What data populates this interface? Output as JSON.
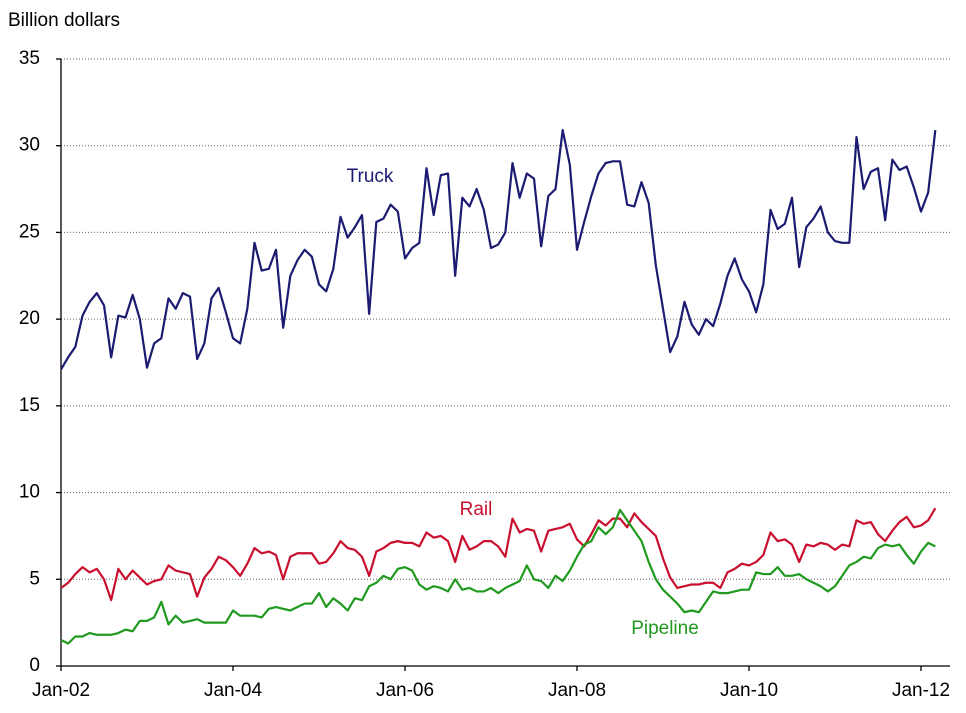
{
  "chart_data": {
    "type": "line",
    "y_label": "Billion dollars",
    "x": [
      "2002-01",
      "2002-02",
      "2002-03",
      "2002-04",
      "2002-05",
      "2002-06",
      "2002-07",
      "2002-08",
      "2002-09",
      "2002-10",
      "2002-11",
      "2002-12",
      "2003-01",
      "2003-02",
      "2003-03",
      "2003-04",
      "2003-05",
      "2003-06",
      "2003-07",
      "2003-08",
      "2003-09",
      "2003-10",
      "2003-11",
      "2003-12",
      "2004-01",
      "2004-02",
      "2004-03",
      "2004-04",
      "2004-05",
      "2004-06",
      "2004-07",
      "2004-08",
      "2004-09",
      "2004-10",
      "2004-11",
      "2004-12",
      "2005-01",
      "2005-02",
      "2005-03",
      "2005-04",
      "2005-05",
      "2005-06",
      "2005-07",
      "2005-08",
      "2005-09",
      "2005-10",
      "2005-11",
      "2005-12",
      "2006-01",
      "2006-02",
      "2006-03",
      "2006-04",
      "2006-05",
      "2006-06",
      "2006-07",
      "2006-08",
      "2006-09",
      "2006-10",
      "2006-11",
      "2006-12",
      "2007-01",
      "2007-02",
      "2007-03",
      "2007-04",
      "2007-05",
      "2007-06",
      "2007-07",
      "2007-08",
      "2007-09",
      "2007-10",
      "2007-11",
      "2007-12",
      "2008-01",
      "2008-02",
      "2008-03",
      "2008-04",
      "2008-05",
      "2008-06",
      "2008-07",
      "2008-08",
      "2008-09",
      "2008-10",
      "2008-11",
      "2008-12",
      "2009-01",
      "2009-02",
      "2009-03",
      "2009-04",
      "2009-05",
      "2009-06",
      "2009-07",
      "2009-08",
      "2009-09",
      "2009-10",
      "2009-11",
      "2009-12",
      "2010-01",
      "2010-02",
      "2010-03",
      "2010-04",
      "2010-05",
      "2010-06",
      "2010-07",
      "2010-08",
      "2010-09",
      "2010-10",
      "2010-11",
      "2010-12",
      "2011-01",
      "2011-02",
      "2011-03",
      "2011-04",
      "2011-05",
      "2011-06",
      "2011-07",
      "2011-08",
      "2011-09",
      "2011-10",
      "2011-11",
      "2011-12",
      "2012-01",
      "2012-02",
      "2012-03"
    ],
    "series": [
      {
        "name": "Truck",
        "color": "#1b1b72",
        "values": [
          17.1,
          17.8,
          18.4,
          20.2,
          21.0,
          21.5,
          20.8,
          17.8,
          20.2,
          20.1,
          21.4,
          20.0,
          17.2,
          18.6,
          18.9,
          21.2,
          20.6,
          21.5,
          21.3,
          17.7,
          18.6,
          21.2,
          21.8,
          20.4,
          18.9,
          18.6,
          20.6,
          24.4,
          22.8,
          22.9,
          24.0,
          19.5,
          22.5,
          23.4,
          24.0,
          23.6,
          22.0,
          21.6,
          22.9,
          25.9,
          24.7,
          25.3,
          26.0,
          20.3,
          25.6,
          25.8,
          26.6,
          26.2,
          23.5,
          24.1,
          24.4,
          28.7,
          26.0,
          28.3,
          28.4,
          22.5,
          27.0,
          26.5,
          27.5,
          26.3,
          24.1,
          24.3,
          25.0,
          29.0,
          27.0,
          28.4,
          28.1,
          24.2,
          27.1,
          27.5,
          30.9,
          28.9,
          24.0,
          25.6,
          27.1,
          28.4,
          29.0,
          29.1,
          29.1,
          26.6,
          26.5,
          27.9,
          26.7,
          23.1,
          20.6,
          18.1,
          19.0,
          21.0,
          19.7,
          19.1,
          20.0,
          19.6,
          20.9,
          22.5,
          23.5,
          22.3,
          21.6,
          20.4,
          22.0,
          26.3,
          25.2,
          25.5,
          27.0,
          23.0,
          25.3,
          25.8,
          26.5,
          25.0,
          24.5,
          24.4,
          24.4,
          30.5,
          27.5,
          28.5,
          28.7,
          25.7,
          29.2,
          28.6,
          28.8,
          27.6,
          26.2,
          27.3,
          30.9
        ]
      },
      {
        "name": "Rail",
        "color": "#c8102e",
        "values": [
          4.5,
          4.8,
          5.3,
          5.7,
          5.4,
          5.6,
          5.0,
          3.8,
          5.6,
          5.0,
          5.5,
          5.1,
          4.7,
          4.9,
          5.0,
          5.8,
          5.5,
          5.4,
          5.3,
          4.0,
          5.1,
          5.6,
          6.3,
          6.1,
          5.7,
          5.2,
          5.9,
          6.8,
          6.5,
          6.6,
          6.4,
          5.0,
          6.3,
          6.5,
          6.5,
          6.5,
          5.9,
          6.0,
          6.5,
          7.2,
          6.8,
          6.7,
          6.3,
          5.2,
          6.6,
          6.8,
          7.1,
          7.2,
          7.1,
          7.1,
          6.9,
          7.7,
          7.4,
          7.5,
          7.2,
          6.0,
          7.5,
          6.7,
          6.9,
          7.2,
          7.2,
          6.9,
          6.3,
          8.5,
          7.7,
          7.9,
          7.8,
          6.6,
          7.8,
          7.9,
          8.0,
          8.2,
          7.3,
          6.9,
          7.6,
          8.4,
          8.1,
          8.5,
          8.5,
          8.0,
          8.8,
          8.3,
          7.9,
          7.5,
          6.2,
          5.1,
          4.5,
          4.6,
          4.7,
          4.7,
          4.8,
          4.8,
          4.5,
          5.4,
          5.6,
          5.9,
          5.8,
          6.0,
          6.4,
          7.7,
          7.2,
          7.3,
          7.0,
          6.0,
          7.0,
          6.9,
          7.1,
          7.0,
          6.7,
          7.0,
          6.9,
          8.4,
          8.2,
          8.3,
          7.6,
          7.2,
          7.8,
          8.3,
          8.6,
          8.0,
          8.1,
          8.4,
          9.1
        ]
      },
      {
        "name": "Pipeline",
        "color": "#1f9a1f",
        "values": [
          1.5,
          1.3,
          1.7,
          1.7,
          1.9,
          1.8,
          1.8,
          1.8,
          1.9,
          2.1,
          2.0,
          2.6,
          2.6,
          2.8,
          3.7,
          2.4,
          2.9,
          2.5,
          2.6,
          2.7,
          2.5,
          2.5,
          2.5,
          2.5,
          3.2,
          2.9,
          2.9,
          2.9,
          2.8,
          3.3,
          3.4,
          3.3,
          3.2,
          3.4,
          3.6,
          3.6,
          4.2,
          3.4,
          3.9,
          3.6,
          3.2,
          3.9,
          3.8,
          4.6,
          4.8,
          5.2,
          5.0,
          5.6,
          5.7,
          5.5,
          4.7,
          4.4,
          4.6,
          4.5,
          4.3,
          5.0,
          4.4,
          4.5,
          4.3,
          4.3,
          4.5,
          4.2,
          4.5,
          4.7,
          4.9,
          5.8,
          5.0,
          4.9,
          4.5,
          5.2,
          4.9,
          5.5,
          6.3,
          7.0,
          7.2,
          8.0,
          7.6,
          8.0,
          9.0,
          8.4,
          7.8,
          7.2,
          6.0,
          5.0,
          4.4,
          4.0,
          3.6,
          3.1,
          3.2,
          3.1,
          3.7,
          4.3,
          4.2,
          4.2,
          4.3,
          4.4,
          4.4,
          5.4,
          5.3,
          5.3,
          5.7,
          5.2,
          5.2,
          5.3,
          5.0,
          4.8,
          4.6,
          4.3,
          4.6,
          5.2,
          5.8,
          6.0,
          6.3,
          6.2,
          6.8,
          7.0,
          6.9,
          7.0,
          6.4,
          5.9,
          6.6,
          7.1,
          6.9
        ]
      }
    ],
    "ylim": [
      0,
      35
    ],
    "yticks": [
      0,
      5,
      10,
      15,
      20,
      25,
      30,
      35
    ],
    "xticks": [
      {
        "value": "2002-01",
        "label": "Jan-02"
      },
      {
        "value": "2004-01",
        "label": "Jan-04"
      },
      {
        "value": "2006-01",
        "label": "Jan-06"
      },
      {
        "value": "2008-01",
        "label": "Jan-08"
      },
      {
        "value": "2010-01",
        "label": "Jan-10"
      },
      {
        "value": "2012-01",
        "label": "Jan-12"
      }
    ],
    "grid": true
  }
}
